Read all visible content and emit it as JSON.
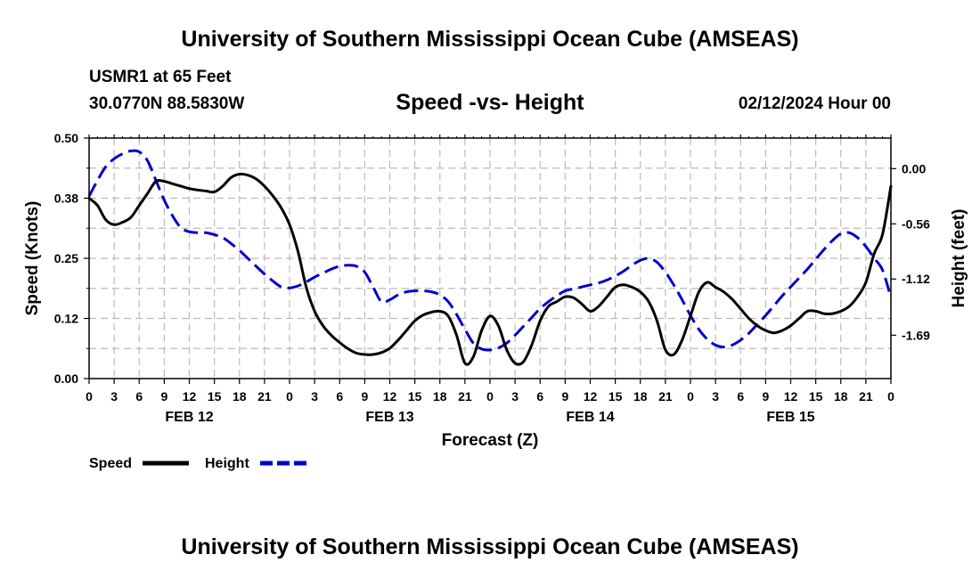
{
  "header": {
    "title": "University of Southern Mississippi Ocean Cube (AMSEAS)",
    "station": "USMR1 at 65 Feet",
    "coords": "30.0770N  88.5830W",
    "subtitle": "Speed -vs- Height",
    "datestamp": "02/12/2024 Hour 00"
  },
  "footer": {
    "title": "University of Southern Mississippi Ocean Cube (AMSEAS)"
  },
  "chart_data": {
    "type": "line",
    "xlabel": "Forecast (Z)",
    "ylabel_left": "Speed (Knots)",
    "ylabel_right": "Height (feet)",
    "x_hours_range": [
      0,
      96
    ],
    "x_tick_labels": [
      "0",
      "3",
      "6",
      "9",
      "12",
      "15",
      "18",
      "21",
      "0",
      "3",
      "6",
      "9",
      "12",
      "15",
      "18",
      "21",
      "0",
      "3",
      "6",
      "9",
      "12",
      "15",
      "18",
      "21",
      "0",
      "3",
      "6",
      "9",
      "12",
      "15",
      "18",
      "21",
      "0"
    ],
    "day_labels": [
      {
        "hour": 12,
        "label": "FEB 12"
      },
      {
        "hour": 36,
        "label": "FEB 13"
      },
      {
        "hour": 60,
        "label": "FEB 14"
      },
      {
        "hour": 84,
        "label": "FEB 15"
      }
    ],
    "speed_axis": {
      "range": [
        0,
        0.5
      ],
      "ticks": [
        0,
        0.125,
        0.25,
        0.375,
        0.5
      ],
      "tick_labels": [
        "0.00",
        "0.12",
        "0.25",
        "0.38",
        "0.50"
      ]
    },
    "height_axis": {
      "range": [
        -2.13,
        0.31
      ],
      "ticks": [
        0.0,
        -0.56,
        -1.12,
        -1.69
      ],
      "tick_labels": [
        "0.00",
        "-0.56",
        "-1.12",
        "-1.69"
      ]
    },
    "series": [
      {
        "name": "Speed",
        "axis": "left",
        "color": "#000000",
        "dash": "solid",
        "x": [
          0,
          1,
          2,
          3,
          4,
          5,
          6,
          7,
          8,
          9,
          10,
          11,
          12,
          13,
          14,
          15,
          16,
          17,
          18,
          19,
          20,
          21,
          22,
          23,
          24,
          25,
          26,
          27,
          28,
          29,
          30,
          31,
          32,
          33,
          34,
          35,
          36,
          37,
          38,
          39,
          40,
          41,
          42,
          43,
          44,
          45,
          46,
          47,
          48,
          49,
          50,
          51,
          52,
          53,
          54,
          55,
          56,
          57,
          58,
          59,
          60,
          61,
          62,
          63,
          64,
          65,
          66,
          67,
          68,
          69,
          70,
          71,
          72,
          73,
          74,
          75,
          76,
          77,
          78,
          79,
          80,
          81,
          82,
          83,
          84,
          85,
          86,
          87,
          88,
          89,
          90,
          91,
          92,
          93,
          94,
          95,
          96
        ],
        "values": [
          0.375,
          0.36,
          0.33,
          0.32,
          0.325,
          0.335,
          0.36,
          0.385,
          0.41,
          0.41,
          0.405,
          0.4,
          0.395,
          0.392,
          0.39,
          0.388,
          0.4,
          0.418,
          0.425,
          0.423,
          0.415,
          0.4,
          0.38,
          0.355,
          0.32,
          0.265,
          0.19,
          0.14,
          0.11,
          0.09,
          0.075,
          0.062,
          0.053,
          0.05,
          0.05,
          0.054,
          0.063,
          0.08,
          0.1,
          0.12,
          0.132,
          0.138,
          0.14,
          0.13,
          0.09,
          0.032,
          0.045,
          0.1,
          0.13,
          0.11,
          0.06,
          0.032,
          0.035,
          0.07,
          0.12,
          0.15,
          0.16,
          0.17,
          0.168,
          0.155,
          0.14,
          0.15,
          0.17,
          0.19,
          0.195,
          0.19,
          0.18,
          0.16,
          0.12,
          0.06,
          0.05,
          0.08,
          0.13,
          0.18,
          0.2,
          0.19,
          0.18,
          0.165,
          0.145,
          0.125,
          0.11,
          0.1,
          0.095,
          0.1,
          0.11,
          0.125,
          0.14,
          0.14,
          0.135,
          0.135,
          0.14,
          0.15,
          0.17,
          0.2,
          0.26,
          0.3,
          0.4
        ]
      },
      {
        "name": "Height",
        "axis": "right",
        "color": "#0000cc",
        "dash": "dashed",
        "x": [
          0,
          1,
          2,
          3,
          4,
          5,
          6,
          7,
          8,
          9,
          10,
          11,
          12,
          13,
          14,
          15,
          16,
          17,
          18,
          19,
          20,
          21,
          22,
          23,
          24,
          25,
          26,
          27,
          28,
          29,
          30,
          31,
          32,
          33,
          34,
          35,
          36,
          37,
          38,
          39,
          40,
          41,
          42,
          43,
          44,
          45,
          46,
          47,
          48,
          49,
          50,
          51,
          52,
          53,
          54,
          55,
          56,
          57,
          58,
          59,
          60,
          61,
          62,
          63,
          64,
          65,
          66,
          67,
          68,
          69,
          70,
          71,
          72,
          73,
          74,
          75,
          76,
          77,
          78,
          79,
          80,
          81,
          82,
          83,
          84,
          85,
          86,
          87,
          88,
          89,
          90,
          91,
          92,
          93,
          94,
          95,
          96
        ],
        "values": [
          -0.28,
          -0.12,
          0.02,
          0.1,
          0.15,
          0.18,
          0.17,
          0.08,
          -0.12,
          -0.32,
          -0.48,
          -0.6,
          -0.64,
          -0.65,
          -0.65,
          -0.67,
          -0.7,
          -0.76,
          -0.83,
          -0.91,
          -0.99,
          -1.07,
          -1.14,
          -1.2,
          -1.21,
          -1.19,
          -1.15,
          -1.1,
          -1.06,
          -1.02,
          -0.99,
          -0.98,
          -0.99,
          -1.05,
          -1.2,
          -1.35,
          -1.33,
          -1.28,
          -1.25,
          -1.24,
          -1.24,
          -1.25,
          -1.28,
          -1.35,
          -1.48,
          -1.63,
          -1.77,
          -1.83,
          -1.84,
          -1.82,
          -1.77,
          -1.69,
          -1.6,
          -1.51,
          -1.42,
          -1.35,
          -1.29,
          -1.24,
          -1.22,
          -1.2,
          -1.18,
          -1.16,
          -1.13,
          -1.09,
          -1.04,
          -0.98,
          -0.93,
          -0.91,
          -0.95,
          -1.05,
          -1.18,
          -1.33,
          -1.49,
          -1.63,
          -1.73,
          -1.79,
          -1.81,
          -1.79,
          -1.74,
          -1.67,
          -1.58,
          -1.49,
          -1.39,
          -1.29,
          -1.2,
          -1.11,
          -1.02,
          -0.92,
          -0.82,
          -0.73,
          -0.66,
          -0.65,
          -0.7,
          -0.79,
          -0.91,
          -1.03,
          -1.31
        ]
      }
    ],
    "legend": [
      {
        "label": "Speed",
        "color": "#000000",
        "dash": "solid"
      },
      {
        "label": "Height",
        "color": "#0000cc",
        "dash": "dashed"
      }
    ],
    "grid": true,
    "legend_position": "bottom-left"
  }
}
